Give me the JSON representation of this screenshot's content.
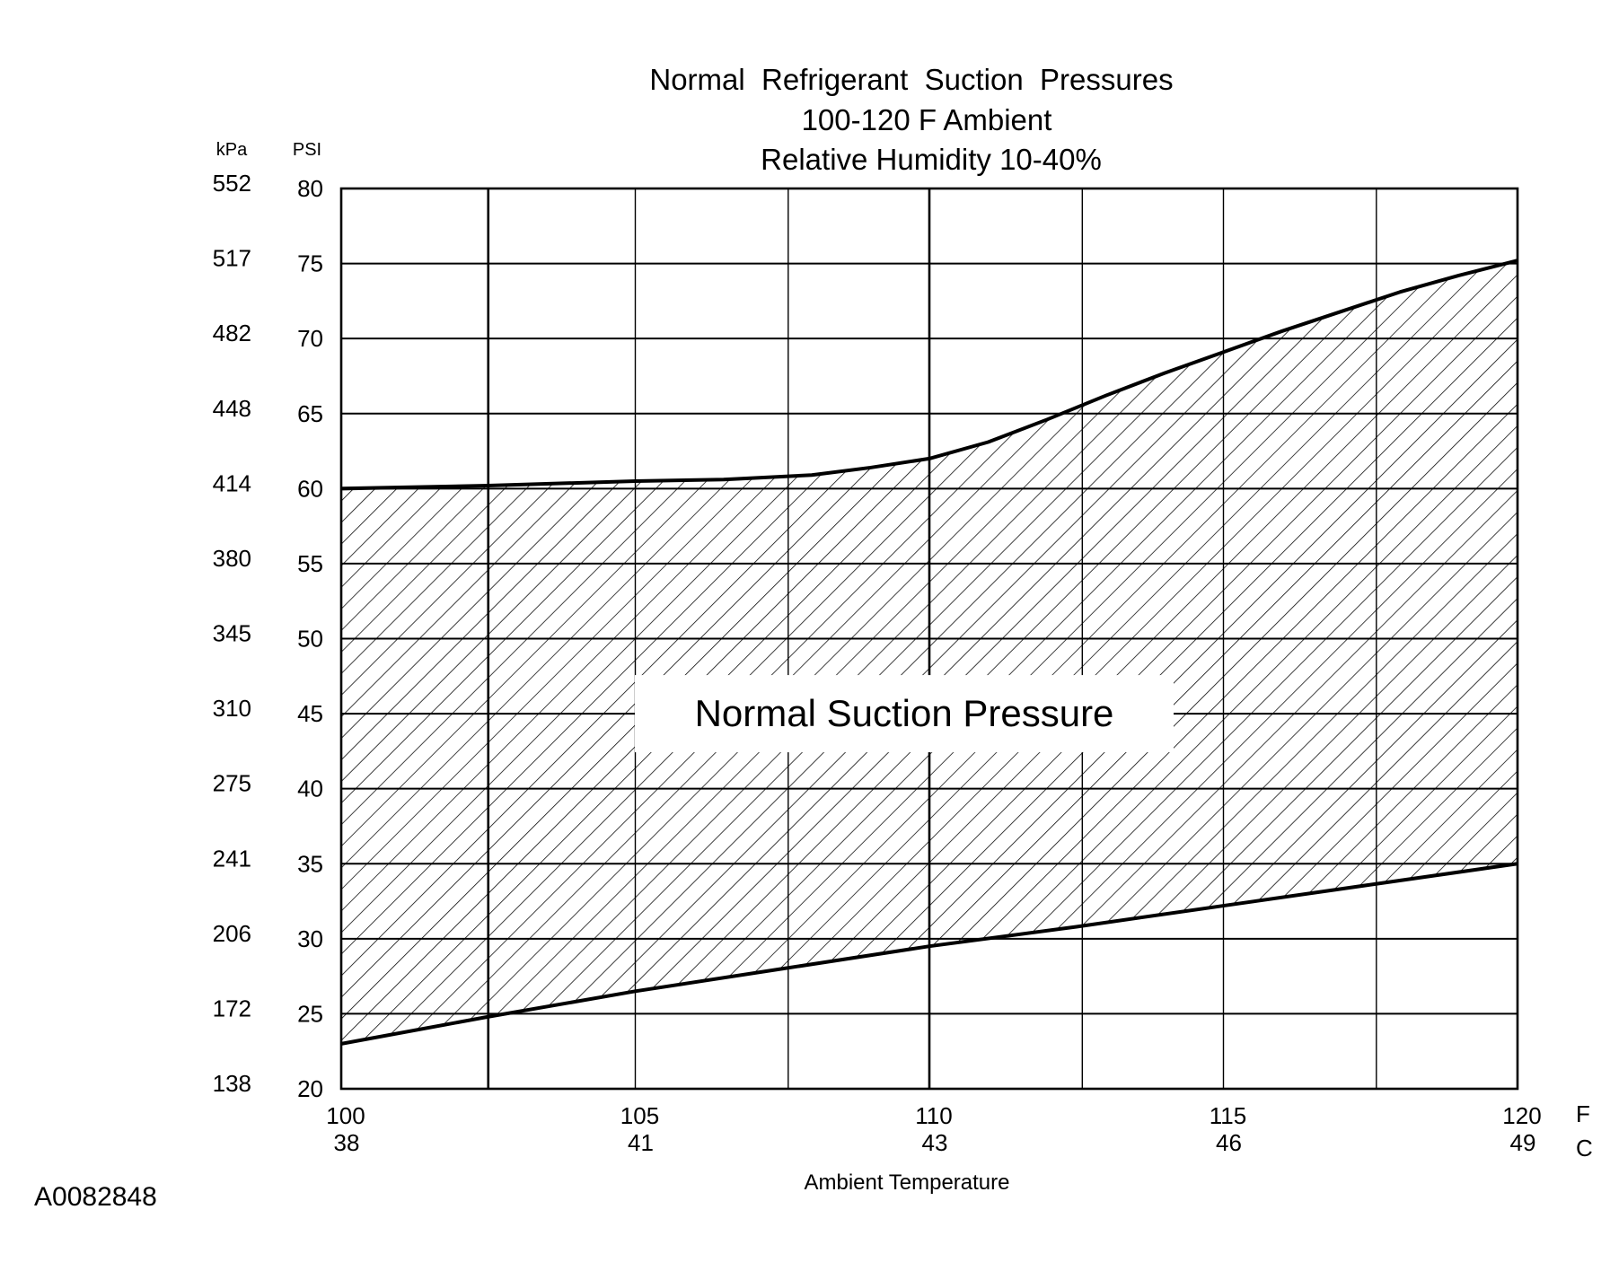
{
  "chart_data": {
    "type": "area",
    "title": [
      "Normal  Refrigerant  Suction  Pressures",
      "100-120 F Ambient",
      "Relative Humidity 10-40%"
    ],
    "xlabel": "Ambient Temperature",
    "x_unit_primary": "F",
    "x_unit_secondary": "C",
    "y_unit_primary": "PSI",
    "y_unit_secondary": "kPa",
    "xlim": [
      100,
      120
    ],
    "ylim": [
      20,
      80
    ],
    "x_ticks": [
      {
        "f": "100",
        "c": "38",
        "value": 100
      },
      {
        "f": "105",
        "c": "41",
        "value": 105
      },
      {
        "f": "110",
        "c": "43",
        "value": 110
      },
      {
        "f": "115",
        "c": "46",
        "value": 115
      },
      {
        "f": "120",
        "c": "49",
        "value": 120
      }
    ],
    "y_ticks": [
      {
        "psi": "80",
        "kpa": "552",
        "value": 80
      },
      {
        "psi": "75",
        "kpa": "517",
        "value": 75
      },
      {
        "psi": "70",
        "kpa": "482",
        "value": 70
      },
      {
        "psi": "65",
        "kpa": "448",
        "value": 65
      },
      {
        "psi": "60",
        "kpa": "414",
        "value": 60
      },
      {
        "psi": "55",
        "kpa": "380",
        "value": 55
      },
      {
        "psi": "50",
        "kpa": "345",
        "value": 50
      },
      {
        "psi": "45",
        "kpa": "310",
        "value": 45
      },
      {
        "psi": "40",
        "kpa": "275",
        "value": 40
      },
      {
        "psi": "35",
        "kpa": "241",
        "value": 35
      },
      {
        "psi": "30",
        "kpa": "206",
        "value": 30
      },
      {
        "psi": "25",
        "kpa": "172",
        "value": 25
      },
      {
        "psi": "20",
        "kpa": "138",
        "value": 20
      }
    ],
    "vertical_grid_x": [
      {
        "value": 102.5,
        "weight": "thick"
      },
      {
        "value": 105,
        "weight": "thin"
      },
      {
        "value": 107.6,
        "weight": "thin"
      },
      {
        "value": 110,
        "weight": "thick"
      },
      {
        "value": 112.6,
        "weight": "thin"
      },
      {
        "value": 115,
        "weight": "thin"
      },
      {
        "value": 117.6,
        "weight": "thin"
      }
    ],
    "grid": true,
    "series": [
      {
        "role": "upper-limit",
        "x": [
          100,
          102.5,
          105,
          106.5,
          108,
          109,
          110,
          111,
          112,
          113,
          114,
          115,
          116,
          117,
          118,
          119,
          120
        ],
        "y": [
          60,
          60.2,
          60.5,
          60.6,
          60.9,
          61.4,
          62,
          63.1,
          64.6,
          66.2,
          67.7,
          69.1,
          70.5,
          71.8,
          73.1,
          74.2,
          75.2
        ]
      },
      {
        "role": "lower-limit",
        "x": [
          100,
          102.5,
          105,
          107.5,
          110,
          112.5,
          115,
          117.5,
          120
        ],
        "y": [
          23,
          24.8,
          26.5,
          28,
          29.5,
          30.8,
          32.2,
          33.6,
          35
        ]
      }
    ],
    "annotations": [
      {
        "text": "Normal Suction Pressure",
        "x": 110,
        "y": 45
      }
    ]
  },
  "figure_id": "A0082848",
  "colors": {
    "ink": "#000000",
    "background": "#ffffff"
  }
}
